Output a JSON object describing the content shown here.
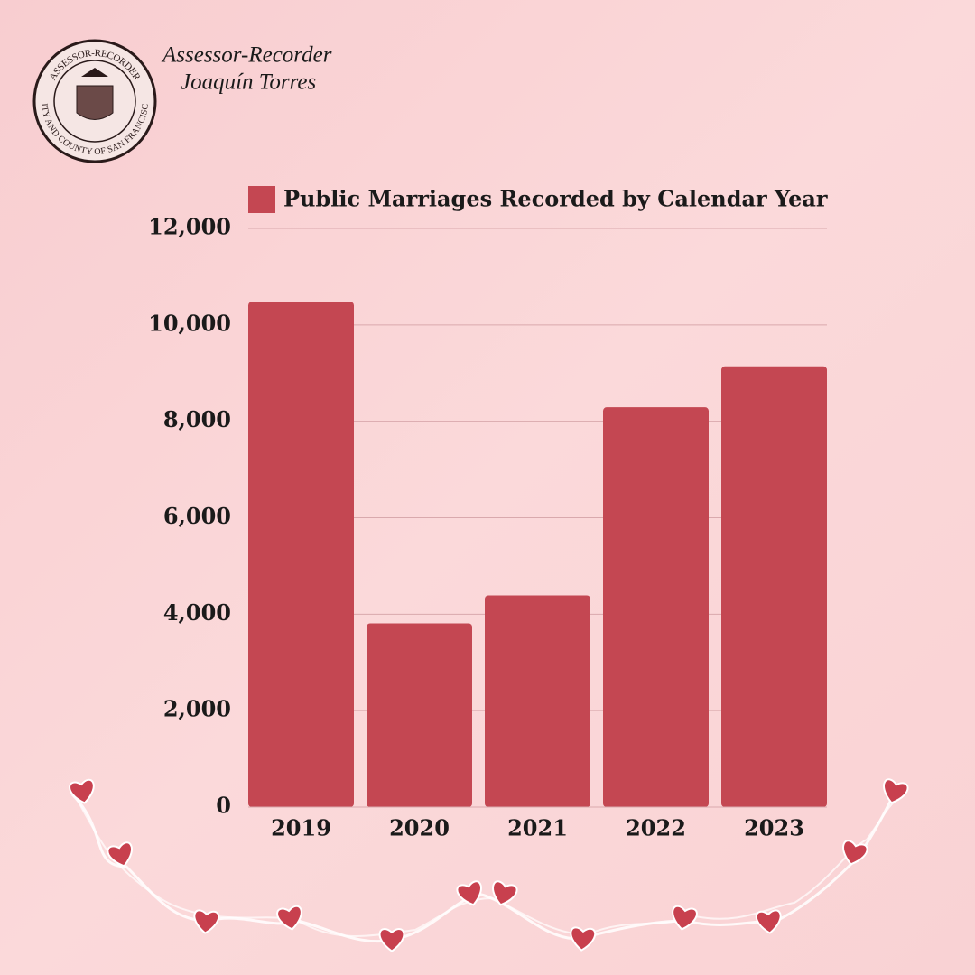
{
  "header": {
    "seal_top": "ASSESSOR-RECORDER",
    "seal_bottom": "CITY AND COUNTY OF SAN FRANCISCO",
    "title": "Assessor-Recorder",
    "name": "Joaquín Torres"
  },
  "chart_data": {
    "type": "bar",
    "categories": [
      "2019",
      "2020",
      "2021",
      "2022",
      "2023"
    ],
    "series": [
      {
        "name": "Public Marriages Recorded by Calendar Year",
        "color": "#c44752",
        "values": [
          10480,
          3810,
          4390,
          8290,
          9140
        ]
      }
    ],
    "ylim": [
      0,
      12000
    ],
    "yticks": [
      0,
      {
        "value": 2000,
        "label": "2,000"
      },
      {
        "value": 4000,
        "label": "4,000"
      },
      {
        "value": 6000,
        "label": "6,000"
      },
      {
        "value": 8000,
        "label": "8,000"
      },
      {
        "value": 10000,
        "label": "10,000"
      },
      {
        "value": 12000,
        "label": "12,000"
      }
    ],
    "grid": true,
    "legend": "top"
  }
}
